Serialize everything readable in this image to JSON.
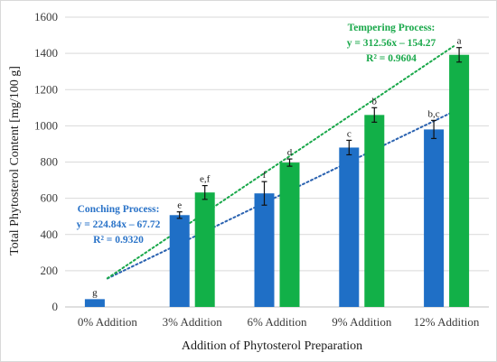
{
  "chart_data": {
    "type": "bar",
    "title": "",
    "xlabel": "Addition of Phytosterol Preparation",
    "ylabel": "Total Phytosterol Content [mg/100 g]",
    "ylim": [
      0,
      1600
    ],
    "yticks": [
      "0",
      "200",
      "400",
      "600",
      "800",
      "1000",
      "1200",
      "1400",
      "1600"
    ],
    "grid": true,
    "legend": "none",
    "categories": [
      "0% Addition",
      "3% Addition",
      "6% Addition",
      "9% Addition",
      "12% Addition"
    ],
    "series": [
      {
        "color": "#1f6fc6",
        "values": [
          43,
          507,
          627,
          880,
          980
        ],
        "errors": [
          0,
          18,
          65,
          40,
          50
        ],
        "labels": [
          "g",
          "e",
          "f",
          "c",
          "b,c"
        ],
        "trendline": {
          "slope": 224.84,
          "intercept": -67.72,
          "color": "#2a62b0"
        }
      },
      {
        "color": "#12b048",
        "values": [
          null,
          632,
          797,
          1060,
          1392
        ],
        "errors": [
          0,
          38,
          20,
          40,
          40
        ],
        "labels": [
          "",
          "e,f",
          "d",
          "b",
          "a"
        ],
        "trendline": {
          "slope": 312.56,
          "intercept": -154.27,
          "color": "#19a84a"
        }
      }
    ],
    "annotations": {
      "conching": {
        "title": "Conching Process:",
        "equation": "y = 224.84x – 67.72",
        "r2": "R² = 0.9320",
        "color": "#2a73c8"
      },
      "tempering": {
        "title": "Tempering Process:",
        "equation": "y = 312.56x – 154.27",
        "r2": "R² = 0.9604",
        "color": "#19a84a"
      }
    }
  }
}
